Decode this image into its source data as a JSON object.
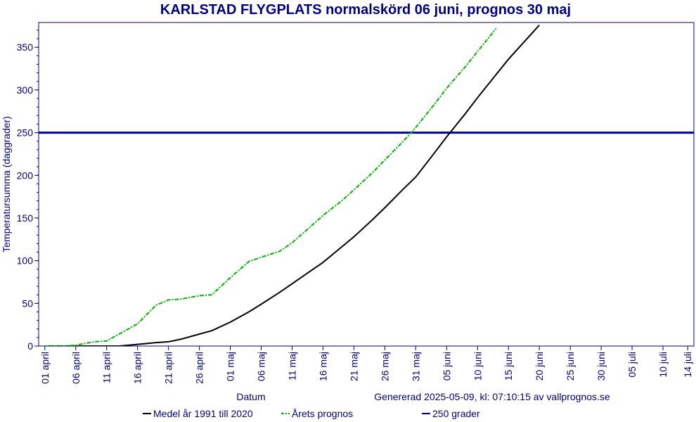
{
  "chart_data": {
    "type": "line",
    "title": "KARLSTAD FLYGPLATS normalskörd 06 juni, prognos 30 maj",
    "ylabel": "Temperatursumma (daggrader)",
    "xlabel": "Datum",
    "annotation": "Genererad 2025-05-09, kl: 07:10:15 av vallprognos.se",
    "xlim": [
      -1,
      105
    ],
    "ylim": [
      0,
      379
    ],
    "yticks": [
      0,
      50,
      100,
      150,
      200,
      250,
      300,
      350
    ],
    "xticks": [
      {
        "value": 0,
        "label": "01 april"
      },
      {
        "value": 5,
        "label": "06 april"
      },
      {
        "value": 10,
        "label": "11 april"
      },
      {
        "value": 15,
        "label": "16 april"
      },
      {
        "value": 20,
        "label": "21 april"
      },
      {
        "value": 25,
        "label": "26 april"
      },
      {
        "value": 30,
        "label": "01 maj"
      },
      {
        "value": 35,
        "label": "06 maj"
      },
      {
        "value": 40,
        "label": "11 maj"
      },
      {
        "value": 45,
        "label": "16 maj"
      },
      {
        "value": 50,
        "label": "21 maj"
      },
      {
        "value": 55,
        "label": "26 maj"
      },
      {
        "value": 60,
        "label": "31 maj"
      },
      {
        "value": 65,
        "label": "05 juni"
      },
      {
        "value": 70,
        "label": "10 juni"
      },
      {
        "value": 75,
        "label": "15 juni"
      },
      {
        "value": 80,
        "label": "20 juni"
      },
      {
        "value": 85,
        "label": "25 juni"
      },
      {
        "value": 90,
        "label": "30 juni"
      },
      {
        "value": 95,
        "label": "05 juli"
      },
      {
        "value": 100,
        "label": "10 juli"
      },
      {
        "value": 104,
        "label": "14 juli"
      }
    ],
    "x": [
      0,
      3,
      5,
      8,
      10,
      12,
      15,
      18,
      20,
      22,
      25,
      27,
      30,
      33,
      35,
      38,
      40,
      43,
      45,
      48,
      50,
      53,
      55,
      58,
      60,
      63,
      65,
      68,
      70,
      73,
      75,
      78,
      80
    ],
    "series": [
      {
        "name": "Medel år 1991 till 2020",
        "color": "#000000",
        "dash": false,
        "values": [
          0,
          0,
          0,
          0,
          0,
          0,
          2,
          4,
          5,
          8,
          14,
          18,
          28,
          40,
          49,
          63,
          73,
          88,
          98,
          116,
          128,
          148,
          162,
          184,
          198,
          226,
          245,
          272,
          291,
          318,
          336,
          360,
          376
        ]
      },
      {
        "name": "Årets prognos",
        "color": "#00b400",
        "dash": true,
        "values": [
          0,
          0,
          1,
          5,
          6,
          14,
          26,
          48,
          54,
          55,
          59,
          60,
          80,
          99,
          104,
          111,
          121,
          140,
          153,
          170,
          183,
          203,
          218,
          240,
          256,
          283,
          302,
          327,
          345,
          372,
          null,
          null,
          null
        ]
      }
    ],
    "hlines": [
      {
        "name": "250 grader",
        "value": 250,
        "color": "#0000a0"
      }
    ]
  }
}
